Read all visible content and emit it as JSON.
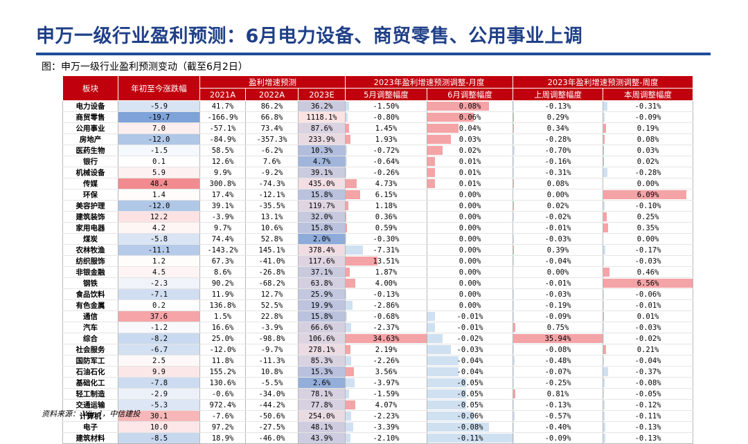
{
  "page": {
    "title": "申万一级行业盈利预测：6月电力设备、商贸零售、公用事业上调",
    "subtitle": "图：申万一级行业盈利预测变动（截至6月2日）",
    "source": "资料来源： Wind，中信建投"
  },
  "colors": {
    "header_red": "#c0000c",
    "accent_blue": "#1f4e99",
    "title_blue": "#1f3f87",
    "pos_fill": "#f4a3a6",
    "neg_fill": "#cfe0f1"
  },
  "table": {
    "headers": {
      "sector": "板块",
      "ytd": "年初至今涨跌幅",
      "growth_group": "盈利增速预测",
      "growth_cols": [
        "2021A",
        "2022A",
        "2023E"
      ],
      "monthly_group": "2023年盈利增速预测调整-月度",
      "monthly_cols": [
        "5月调整幅度",
        "6月调整幅度"
      ],
      "weekly_group": "2023年盈利增速预测调整-周度",
      "weekly_cols": [
        "上周调整幅度",
        "本周调整幅度"
      ]
    },
    "rows": [
      {
        "name": "电力设备",
        "ytd": "-5.9",
        "g2021": "41.7%",
        "g2022": "86.2%",
        "g2023": "36.2%",
        "may": "-1.50%",
        "jun": "0.08%",
        "lastwk": "-0.13%",
        "thiswk": "-0.31%"
      },
      {
        "name": "商贸零售",
        "ytd": "-19.7",
        "g2021": "-166.9%",
        "g2022": "66.8%",
        "g2023": "1118.1%",
        "may": "-0.80%",
        "jun": "0.06%",
        "lastwk": "0.29%",
        "thiswk": "-0.09%"
      },
      {
        "name": "公用事业",
        "ytd": "7.0",
        "g2021": "-57.1%",
        "g2022": "73.4%",
        "g2023": "87.6%",
        "may": "1.45%",
        "jun": "0.04%",
        "lastwk": "0.34%",
        "thiswk": "0.19%"
      },
      {
        "name": "房地产",
        "ytd": "-12.0",
        "g2021": "-84.9%",
        "g2022": "-357.3%",
        "g2023": "233.9%",
        "may": "1.93%",
        "jun": "0.03%",
        "lastwk": "-0.28%",
        "thiswk": "0.08%"
      },
      {
        "name": "医药生物",
        "ytd": "-1.5",
        "g2021": "58.5%",
        "g2022": "-6.2%",
        "g2023": "10.3%",
        "may": "-0.72%",
        "jun": "0.02%",
        "lastwk": "-0.70%",
        "thiswk": "0.03%"
      },
      {
        "name": "银行",
        "ytd": "0.1",
        "g2021": "12.6%",
        "g2022": "7.6%",
        "g2023": "4.7%",
        "may": "-0.64%",
        "jun": "0.01%",
        "lastwk": "-0.16%",
        "thiswk": "0.02%"
      },
      {
        "name": "机械设备",
        "ytd": "5.9",
        "g2021": "9.9%",
        "g2022": "-9.2%",
        "g2023": "39.1%",
        "may": "-0.26%",
        "jun": "0.01%",
        "lastwk": "-0.31%",
        "thiswk": "-0.28%"
      },
      {
        "name": "传媒",
        "ytd": "48.4",
        "g2021": "300.8%",
        "g2022": "-74.3%",
        "g2023": "435.0%",
        "may": "4.73%",
        "jun": "0.01%",
        "lastwk": "0.08%",
        "thiswk": "0.00%"
      },
      {
        "name": "环保",
        "ytd": "1.4",
        "g2021": "17.4%",
        "g2022": "-12.1%",
        "g2023": "15.8%",
        "may": "6.15%",
        "jun": "0.00%",
        "lastwk": "0.00%",
        "thiswk": "6.09%"
      },
      {
        "name": "美容护理",
        "ytd": "-12.0",
        "g2021": "39.1%",
        "g2022": "-35.5%",
        "g2023": "119.7%",
        "may": "1.18%",
        "jun": "0.00%",
        "lastwk": "0.02%",
        "thiswk": "-0.10%"
      },
      {
        "name": "建筑装饰",
        "ytd": "12.2",
        "g2021": "-3.9%",
        "g2022": "13.1%",
        "g2023": "32.0%",
        "may": "0.36%",
        "jun": "0.00%",
        "lastwk": "-0.02%",
        "thiswk": "0.25%"
      },
      {
        "name": "家用电器",
        "ytd": "4.2",
        "g2021": "9.7%",
        "g2022": "10.6%",
        "g2023": "15.8%",
        "may": "0.59%",
        "jun": "0.00%",
        "lastwk": "-0.01%",
        "thiswk": "0.35%"
      },
      {
        "name": "煤炭",
        "ytd": "-5.8",
        "g2021": "74.4%",
        "g2022": "52.8%",
        "g2023": "2.0%",
        "may": "-0.30%",
        "jun": "0.00%",
        "lastwk": "-0.03%",
        "thiswk": "0.00%"
      },
      {
        "name": "农林牧渔",
        "ytd": "-11.1",
        "g2021": "-143.2%",
        "g2022": "145.1%",
        "g2023": "378.4%",
        "may": "-7.31%",
        "jun": "0.00%",
        "lastwk": "0.39%",
        "thiswk": "-0.17%"
      },
      {
        "name": "纺织服饰",
        "ytd": "1.2",
        "g2021": "67.3%",
        "g2022": "-41.0%",
        "g2023": "117.6%",
        "may": "13.51%",
        "jun": "0.00%",
        "lastwk": "-0.04%",
        "thiswk": "-0.03%"
      },
      {
        "name": "非银金融",
        "ytd": "4.5",
        "g2021": "8.6%",
        "g2022": "-26.8%",
        "g2023": "37.1%",
        "may": "1.87%",
        "jun": "0.00%",
        "lastwk": "0.00%",
        "thiswk": "0.46%"
      },
      {
        "name": "钢铁",
        "ytd": "-2.3",
        "g2021": "90.2%",
        "g2022": "-68.2%",
        "g2023": "63.8%",
        "may": "4.00%",
        "jun": "0.00%",
        "lastwk": "-0.01%",
        "thiswk": "6.56%"
      },
      {
        "name": "食品饮料",
        "ytd": "-7.1",
        "g2021": "11.9%",
        "g2022": "12.7%",
        "g2023": "25.9%",
        "may": "-0.13%",
        "jun": "0.00%",
        "lastwk": "-0.03%",
        "thiswk": "-0.06%"
      },
      {
        "name": "有色金属",
        "ytd": "0.2",
        "g2021": "136.8%",
        "g2022": "52.5%",
        "g2023": "19.9%",
        "may": "-2.86%",
        "jun": "0.00%",
        "lastwk": "-0.19%",
        "thiswk": "-0.01%"
      },
      {
        "name": "通信",
        "ytd": "37.6",
        "g2021": "1.5%",
        "g2022": "22.8%",
        "g2023": "15.8%",
        "may": "-0.68%",
        "jun": "-0.01%",
        "lastwk": "-0.09%",
        "thiswk": "0.01%"
      },
      {
        "name": "汽车",
        "ytd": "-1.2",
        "g2021": "16.6%",
        "g2022": "-3.9%",
        "g2023": "66.6%",
        "may": "-2.37%",
        "jun": "-0.01%",
        "lastwk": "0.75%",
        "thiswk": "-0.03%"
      },
      {
        "name": "综合",
        "ytd": "-8.2",
        "g2021": "25.0%",
        "g2022": "-98.8%",
        "g2023": "106.6%",
        "may": "34.63%",
        "jun": "-0.02%",
        "lastwk": "35.94%",
        "thiswk": "-0.02%"
      },
      {
        "name": "社会服务",
        "ytd": "-6.7",
        "g2021": "-12.0%",
        "g2022": "-9.7%",
        "g2023": "278.1%",
        "may": "2.19%",
        "jun": "-0.03%",
        "lastwk": "-0.08%",
        "thiswk": "0.21%"
      },
      {
        "name": "国防军工",
        "ytd": "2.5",
        "g2021": "11.8%",
        "g2022": "-11.3%",
        "g2023": "85.3%",
        "may": "-2.26%",
        "jun": "-0.04%",
        "lastwk": "-0.48%",
        "thiswk": "-0.04%"
      },
      {
        "name": "石油石化",
        "ytd": "9.9",
        "g2021": "155.2%",
        "g2022": "10.8%",
        "g2023": "15.3%",
        "may": "3.56%",
        "jun": "-0.04%",
        "lastwk": "-0.07%",
        "thiswk": "-0.37%"
      },
      {
        "name": "基础化工",
        "ytd": "-7.8",
        "g2021": "130.6%",
        "g2022": "-5.5%",
        "g2023": "2.6%",
        "may": "-3.97%",
        "jun": "-0.05%",
        "lastwk": "-0.25%",
        "thiswk": "-0.08%"
      },
      {
        "name": "轻工制造",
        "ytd": "-2.9",
        "g2021": "-0.6%",
        "g2022": "-34.0%",
        "g2023": "78.1%",
        "may": "-1.59%",
        "jun": "-0.05%",
        "lastwk": "0.81%",
        "thiswk": "-0.05%"
      },
      {
        "name": "交通运输",
        "ytd": "-5.3",
        "g2021": "972.4%",
        "g2022": "-44.2%",
        "g2023": "77.8%",
        "may": "4.07%",
        "jun": "-0.05%",
        "lastwk": "-0.13%",
        "thiswk": "-0.12%"
      },
      {
        "name": "计算机",
        "ytd": "30.1",
        "g2021": "-7.6%",
        "g2022": "-50.6%",
        "g2023": "254.0%",
        "may": "-2.23%",
        "jun": "-0.06%",
        "lastwk": "-0.57%",
        "thiswk": "-0.11%"
      },
      {
        "name": "电子",
        "ytd": "10.0",
        "g2021": "97.2%",
        "g2022": "-27.5%",
        "g2023": "48.1%",
        "may": "-3.39%",
        "jun": "-0.08%",
        "lastwk": "-0.40%",
        "thiswk": "-0.13%"
      },
      {
        "name": "建筑材料",
        "ytd": "-8.5",
        "g2021": "18.9%",
        "g2022": "-46.0%",
        "g2023": "43.9%",
        "may": "-2.10%",
        "jun": "-0.11%",
        "lastwk": "-0.09%",
        "thiswk": "-0.13%"
      }
    ]
  }
}
